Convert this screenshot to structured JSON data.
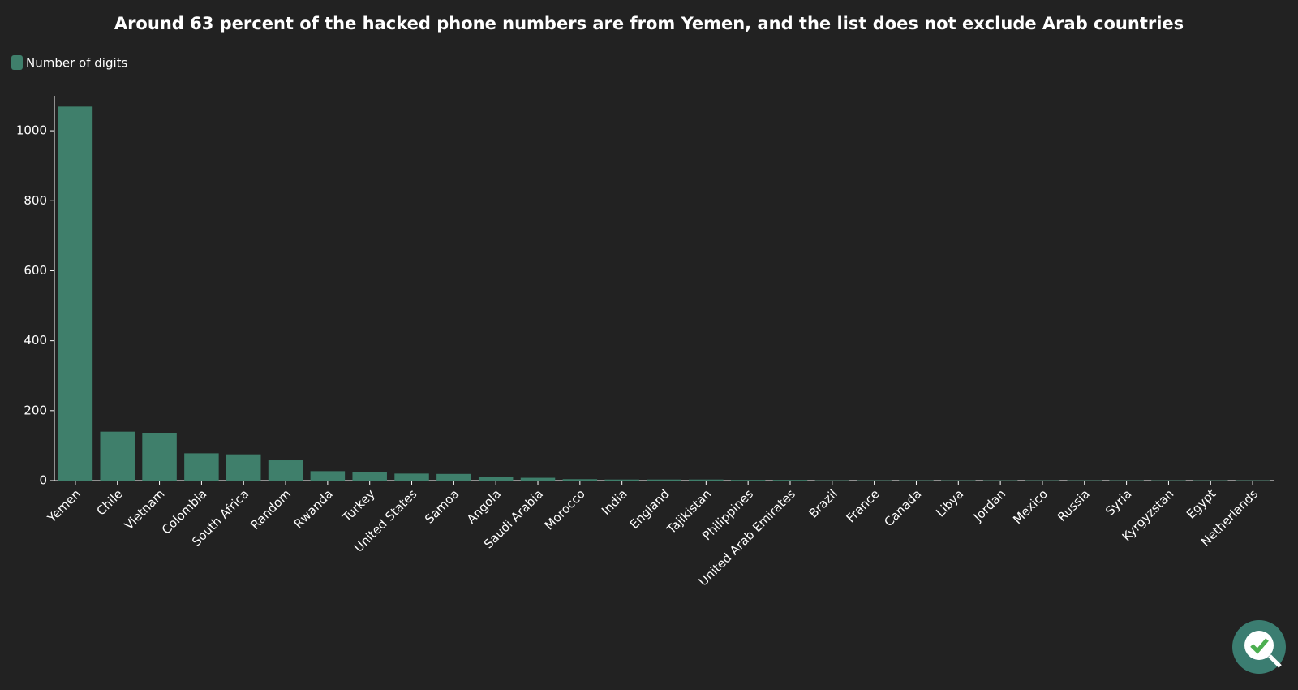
{
  "chart_data": {
    "type": "bar",
    "title": "Around 63 percent of the hacked phone numbers are from Yemen, and the list does not exclude Arab countries",
    "categories": [
      "Yemen",
      "Chile",
      "Vietnam",
      "Colombia",
      "South Africa",
      "Random",
      "Rwanda",
      "Turkey",
      "United States",
      "Samoa",
      "Angola",
      "Saudi Arabia",
      "Morocco",
      "India",
      "England",
      "Tajikistan",
      "Philippines",
      "United Arab Emirates",
      "Brazil",
      "France",
      "Canada",
      "Libya",
      "Jordan",
      "Mexico",
      "Russia",
      "Syria",
      "Kyrgyzstan",
      "Egypt",
      "Netherlands"
    ],
    "series": [
      {
        "name": "Number of digits",
        "color": "#3f7f6b",
        "values": [
          1069,
          140,
          135,
          78,
          75,
          58,
          27,
          25,
          20,
          19,
          10,
          8,
          4,
          3,
          3,
          3,
          2,
          2,
          1,
          1,
          1,
          1,
          1,
          1,
          1,
          1,
          1,
          1,
          1
        ]
      }
    ],
    "ylim": [
      0,
      1100
    ],
    "yticks": [
      0,
      200,
      400,
      600,
      800,
      1000
    ],
    "grid": false,
    "legend": "top-left"
  }
}
